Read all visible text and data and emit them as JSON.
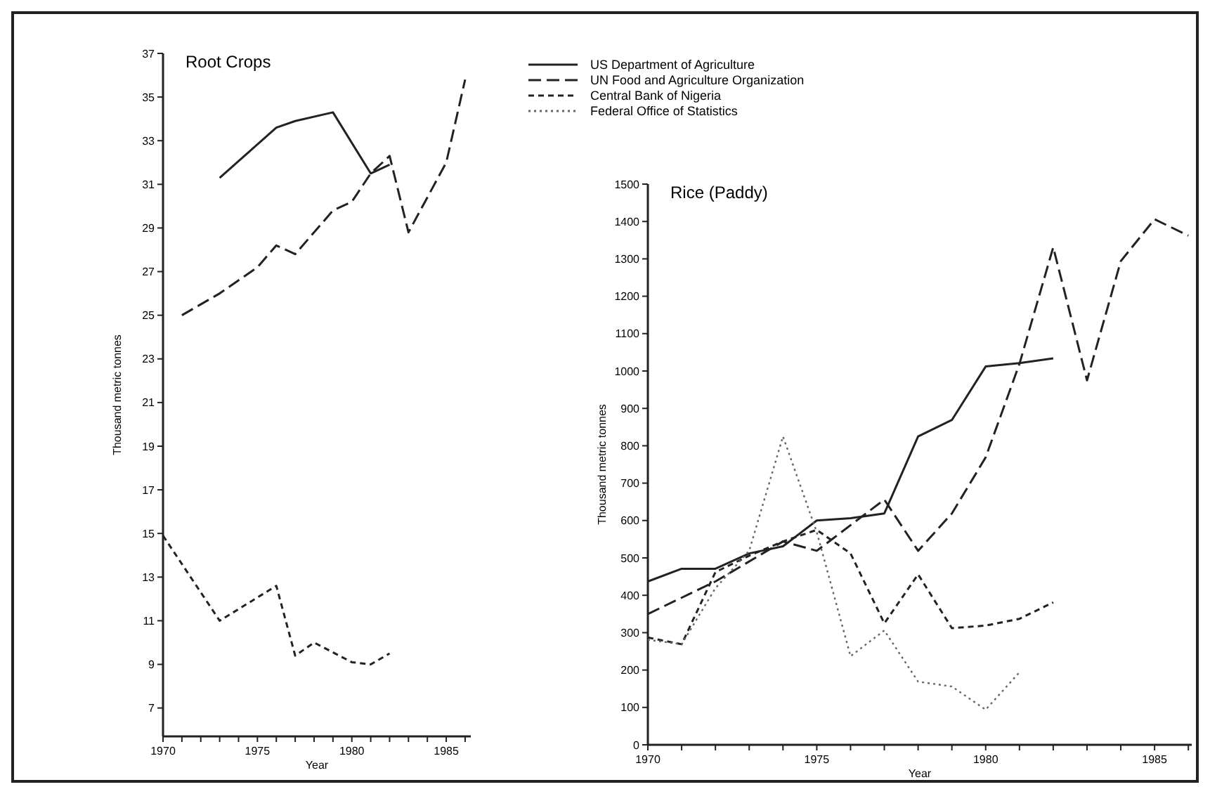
{
  "chart_data": [
    {
      "type": "line",
      "title": "Root Crops",
      "xlabel": "Year",
      "ylabel": "Thousand metric tonnes",
      "xlim": [
        1970,
        1986.3
      ],
      "ylim": [
        5.7,
        37
      ],
      "xticks": [
        1970,
        {
          "value": 1971,
          "label": null
        },
        {
          "value": 1972,
          "label": null
        },
        {
          "value": 1973,
          "label": null
        },
        {
          "value": 1974,
          "label": null
        },
        1975,
        {
          "value": 1976,
          "label": null
        },
        {
          "value": 1977,
          "label": null
        },
        {
          "value": 1978,
          "label": null
        },
        {
          "value": 1979,
          "label": null
        },
        1980,
        {
          "value": 1981,
          "label": null
        },
        {
          "value": 1982,
          "label": null
        },
        {
          "value": 1983,
          "label": null
        },
        {
          "value": 1984,
          "label": null
        },
        1985,
        {
          "value": 1986,
          "label": null
        }
      ],
      "yticks": [
        7,
        9,
        11,
        13,
        15,
        17,
        19,
        21,
        23,
        25,
        27,
        29,
        31,
        33,
        35,
        37
      ],
      "grid": false,
      "legend": false,
      "marker": "none",
      "series": [
        {
          "color": "#222222",
          "line_style": "solid",
          "x": [
            1973,
            1976,
            1977,
            1979,
            1981,
            1982
          ],
          "values": [
            31.3,
            33.6,
            33.9,
            34.3,
            31.5,
            31.9
          ]
        },
        {
          "color": "#222222",
          "line_style": "dashed",
          "x": [
            1971,
            1973,
            1975,
            1976,
            1977,
            1979,
            1980,
            1981,
            1982,
            1983,
            1985,
            1986
          ],
          "values": [
            25.0,
            26.0,
            27.2,
            28.2,
            27.8,
            29.8,
            30.2,
            31.5,
            32.3,
            28.8,
            32.0,
            35.8
          ]
        },
        {
          "color": "#222222",
          "line_style": "dashed",
          "x": [
            1970,
            1973,
            1976,
            1977,
            1978,
            1980,
            1981,
            1982
          ],
          "values": [
            14.9,
            11.0,
            12.6,
            9.4,
            10.0,
            9.1,
            9.0,
            9.5
          ]
        }
      ]
    },
    {
      "type": "line",
      "title": "Rice (Paddy)",
      "xlabel": "Year",
      "ylabel": "Thousand metric tonnes",
      "xlim": [
        1970,
        1986.1
      ],
      "ylim": [
        0,
        1500
      ],
      "xticks": [
        1970,
        {
          "value": 1971,
          "label": null
        },
        {
          "value": 1972,
          "label": null
        },
        {
          "value": 1973,
          "label": null
        },
        {
          "value": 1974,
          "label": null
        },
        1975,
        {
          "value": 1976,
          "label": null
        },
        {
          "value": 1977,
          "label": null
        },
        {
          "value": 1978,
          "label": null
        },
        {
          "value": 1979,
          "label": null
        },
        1980,
        {
          "value": 1981,
          "label": null
        },
        {
          "value": 1982,
          "label": null
        },
        {
          "value": 1983,
          "label": null
        },
        {
          "value": 1984,
          "label": null
        },
        1985,
        {
          "value": 1986,
          "label": null
        }
      ],
      "yticks": [
        0,
        100,
        200,
        300,
        400,
        500,
        600,
        700,
        800,
        900,
        1000,
        1100,
        1200,
        1300,
        1400,
        1500
      ],
      "grid": false,
      "legend": "top left",
      "marker": "none",
      "series": [
        {
          "name": "US Department of Agriculture",
          "color": "#222222",
          "line_style": "solid",
          "x": [
            1970,
            1971,
            1972,
            1973,
            1974,
            1975,
            1976,
            1977,
            1978,
            1979,
            1980,
            1981,
            1982
          ],
          "values": [
            437,
            471,
            471,
            512,
            531,
            600,
            606,
            619,
            825,
            869,
            1012,
            1021,
            1034
          ]
        },
        {
          "name": "UN Food and Agriculture Organization",
          "color": "#222222",
          "line_style": "dashed",
          "x": [
            1970,
            1972,
            1974,
            1975,
            1977,
            1978,
            1979,
            1980,
            1981,
            1982,
            1983,
            1984,
            1985,
            1986
          ],
          "values": [
            350,
            437,
            544,
            519,
            656,
            519,
            619,
            769,
            1019,
            1331,
            975,
            1294,
            1406,
            1362
          ]
        },
        {
          "name": "Central Bank of Nigeria",
          "color": "#222222",
          "line_style": "dashed",
          "x": [
            1970,
            1971,
            1972,
            1973,
            1974,
            1975,
            1976,
            1977,
            1978,
            1979,
            1980,
            1981,
            1982
          ],
          "values": [
            287,
            269,
            462,
            506,
            544,
            575,
            512,
            325,
            456,
            312,
            319,
            337,
            381
          ]
        },
        {
          "name": "Federal Office of Statistics",
          "color": "#666666",
          "line_style": "dotted",
          "x": [
            1970,
            1971,
            1972,
            1973,
            1974,
            1975,
            1976,
            1977,
            1978,
            1979,
            1980,
            1981
          ],
          "values": [
            281,
            269,
            419,
            519,
            825,
            569,
            237,
            306,
            169,
            156,
            94,
            194
          ]
        }
      ]
    }
  ]
}
